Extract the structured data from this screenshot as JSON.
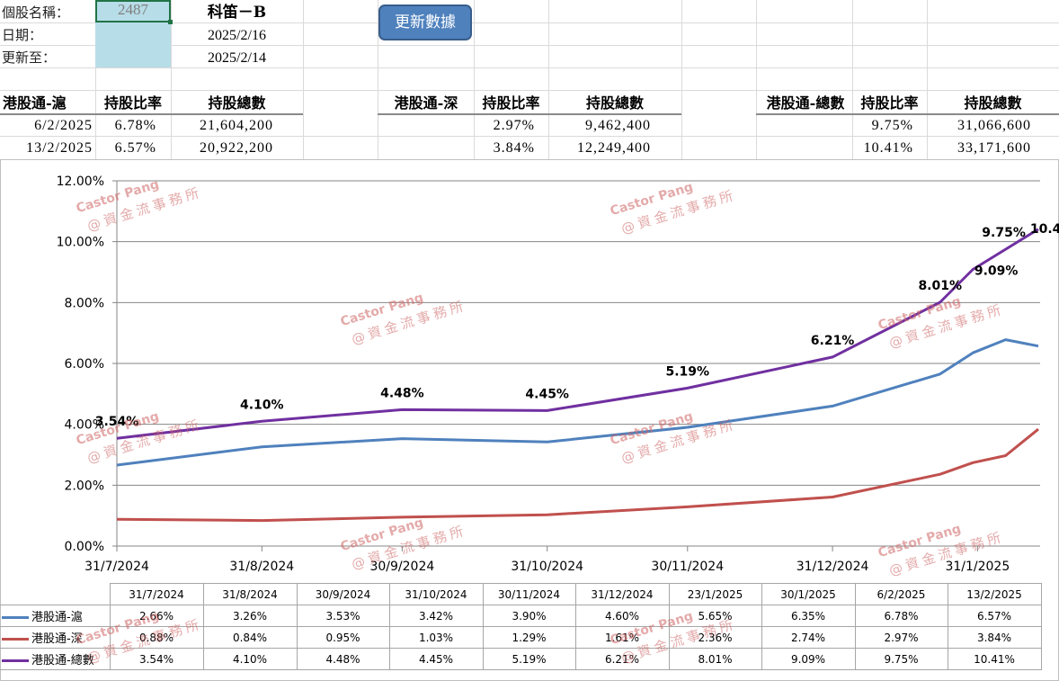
{
  "sheet": {
    "labels": {
      "stock_name": "個股名稱：",
      "date": "日期：",
      "updated_to": "更新至："
    },
    "stock_code": "2487",
    "stock_name": "科笛－B",
    "date": "2025/2/16",
    "updated_to": "2025/2/14",
    "update_button": "更新數據"
  },
  "summary": {
    "sh": {
      "title": "港股通-滬",
      "col_ratio": "持股比率",
      "col_total": "持股總數",
      "rows": [
        {
          "date": "6/2/2025",
          "ratio": "6.78%",
          "total": "21,604,200"
        },
        {
          "date": "13/2/2025",
          "ratio": "6.57%",
          "total": "20,922,200"
        }
      ]
    },
    "sz": {
      "title": "港股通-深",
      "col_ratio": "持股比率",
      "col_total": "持股總數",
      "rows": [
        {
          "ratio": "2.97%",
          "total": "9,462,400"
        },
        {
          "ratio": "3.84%",
          "total": "12,249,400"
        }
      ]
    },
    "all": {
      "title": "港股通-總數",
      "col_ratio": "持股比率",
      "col_total": "持股總數",
      "rows": [
        {
          "ratio": "9.75%",
          "total": "31,066,600"
        },
        {
          "ratio": "10.41%",
          "total": "33,171,600"
        }
      ]
    }
  },
  "watermark": {
    "line1": "Castor Pang",
    "line2": "@資金流事務所"
  },
  "chart_data": {
    "type": "line",
    "title": "",
    "xlabel": "",
    "ylabel": "",
    "ylim": [
      0,
      12
    ],
    "y_ticks": [
      "0.00%",
      "2.00%",
      "4.00%",
      "6.00%",
      "8.00%",
      "10.00%",
      "12.00%"
    ],
    "x_tick_labels": [
      "31/7/2024",
      "31/8/2024",
      "30/9/2024",
      "31/10/2024",
      "30/11/2024",
      "31/12/2024",
      "31/1/2025"
    ],
    "grid": true,
    "legend_position": "data-table",
    "categories": [
      "31/7/2024",
      "31/8/2024",
      "30/9/2024",
      "31/10/2024",
      "30/11/2024",
      "31/12/2024",
      "23/1/2025",
      "30/1/2025",
      "6/2/2025",
      "13/2/2025"
    ],
    "series": [
      {
        "name": "港股通-滬",
        "color": "#4f81bd",
        "values": [
          2.66,
          3.26,
          3.53,
          3.42,
          3.9,
          4.6,
          5.65,
          6.35,
          6.78,
          6.57
        ],
        "labels": [
          "2.66%",
          "3.26%",
          "3.53%",
          "3.42%",
          "3.90%",
          "4.60%",
          "5.65%",
          "6.35%",
          "6.78%",
          "6.57%"
        ]
      },
      {
        "name": "港股通-深",
        "color": "#c0504d",
        "values": [
          0.88,
          0.84,
          0.95,
          1.03,
          1.29,
          1.61,
          2.36,
          2.74,
          2.97,
          3.84
        ],
        "labels": [
          "0.88%",
          "0.84%",
          "0.95%",
          "1.03%",
          "1.29%",
          "1.61%",
          "2.36%",
          "2.74%",
          "2.97%",
          "3.84%"
        ]
      },
      {
        "name": "港股通-總數",
        "color": "#7030a0",
        "values": [
          3.54,
          4.1,
          4.48,
          4.45,
          5.19,
          6.21,
          8.01,
          9.09,
          9.75,
          10.41
        ],
        "labels": [
          "3.54%",
          "4.10%",
          "4.48%",
          "4.45%",
          "5.19%",
          "6.21%",
          "8.01%",
          "9.09%",
          "9.75%",
          "10.41%"
        ]
      }
    ]
  }
}
